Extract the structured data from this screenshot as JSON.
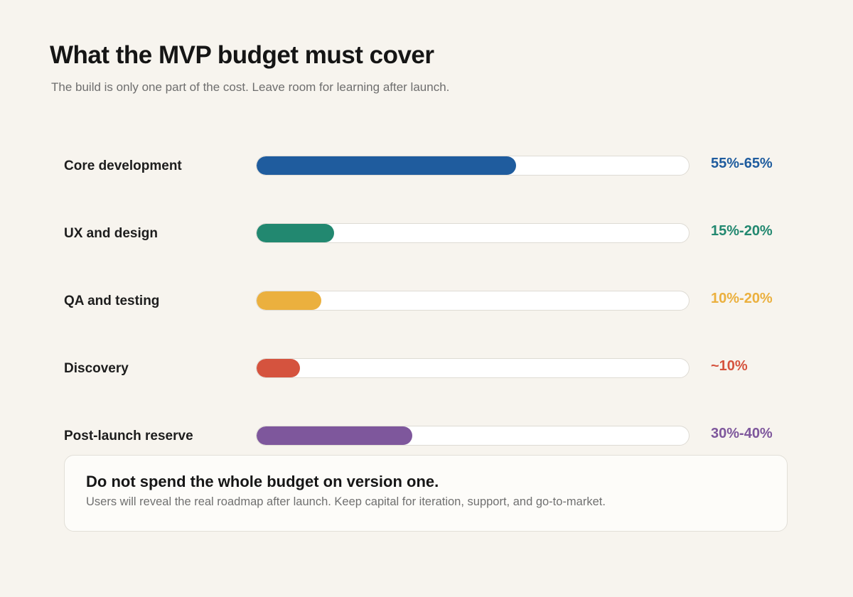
{
  "header": {
    "title": "What the MVP budget must cover",
    "subtitle": "The build is only one part of the cost. Leave room for learning after launch."
  },
  "chart_data": {
    "type": "bar",
    "orientation": "horizontal",
    "value_unit": "percent of budget",
    "xlim": [
      0,
      100
    ],
    "categories": [
      "Core development",
      "UX and design",
      "QA and testing",
      "Discovery",
      "Post-launch reserve"
    ],
    "ranges": [
      [
        55,
        65
      ],
      [
        15,
        20
      ],
      [
        10,
        20
      ],
      [
        10,
        10
      ],
      [
        30,
        40
      ]
    ],
    "values": [
      60,
      18,
      15,
      10,
      36
    ],
    "value_labels": [
      "55%-65%",
      "15%-20%",
      "10%-20%",
      "~10%",
      "30%-40%"
    ],
    "colors": [
      "#1f5c9e",
      "#228870",
      "#ebb03e",
      "#d5533e",
      "#7e579c"
    ]
  },
  "note": {
    "heading": "Do not spend the whole budget on version one.",
    "body": "Users will reveal the real roadmap after launch. Keep capital for iteration, support, and go-to-market."
  }
}
